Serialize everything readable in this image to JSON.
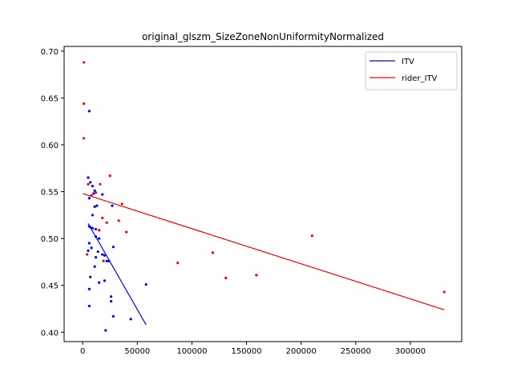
{
  "chart_data": {
    "type": "scatter",
    "title": "original_glszm_SizeZoneNonUniformityNormalized",
    "xlabel": "",
    "ylabel": "",
    "xlim": [
      -17000,
      347000
    ],
    "ylim": [
      0.39,
      0.705
    ],
    "x_ticks": [
      0,
      50000,
      100000,
      150000,
      200000,
      250000,
      300000
    ],
    "x_tick_labels": [
      "0",
      "50000",
      "100000",
      "150000",
      "200000",
      "250000",
      "300000"
    ],
    "y_ticks": [
      0.4,
      0.45,
      0.5,
      0.55,
      0.6,
      0.65,
      0.7
    ],
    "y_tick_labels": [
      "0.40",
      "0.45",
      "0.50",
      "0.55",
      "0.60",
      "0.65",
      "0.70"
    ],
    "grid": false,
    "legend_position": "top-right",
    "series": [
      {
        "name": "ITV",
        "color": "#0000ff",
        "points": [
          [
            6000,
            0.636
          ],
          [
            5000,
            0.565
          ],
          [
            7000,
            0.56
          ],
          [
            9000,
            0.556
          ],
          [
            11000,
            0.551
          ],
          [
            10000,
            0.548
          ],
          [
            18000,
            0.547
          ],
          [
            6000,
            0.543
          ],
          [
            13000,
            0.535
          ],
          [
            11000,
            0.534
          ],
          [
            27000,
            0.535
          ],
          [
            9000,
            0.525
          ],
          [
            6000,
            0.513
          ],
          [
            7000,
            0.512
          ],
          [
            9000,
            0.511
          ],
          [
            12000,
            0.51
          ],
          [
            12000,
            0.502
          ],
          [
            15000,
            0.5
          ],
          [
            6000,
            0.495
          ],
          [
            8000,
            0.49
          ],
          [
            28000,
            0.491
          ],
          [
            5000,
            0.487
          ],
          [
            14000,
            0.486
          ],
          [
            18000,
            0.483
          ],
          [
            20000,
            0.482
          ],
          [
            12000,
            0.48
          ],
          [
            22000,
            0.476
          ],
          [
            24000,
            0.476
          ],
          [
            11000,
            0.47
          ],
          [
            7000,
            0.459
          ],
          [
            20000,
            0.455
          ],
          [
            15000,
            0.453
          ],
          [
            58000,
            0.451
          ],
          [
            6000,
            0.446
          ],
          [
            26000,
            0.438
          ],
          [
            26000,
            0.433
          ],
          [
            6000,
            0.428
          ],
          [
            28000,
            0.417
          ],
          [
            44000,
            0.414
          ],
          [
            21000,
            0.402
          ]
        ],
        "fit_line": [
          [
            5000,
            0.516
          ],
          [
            58000,
            0.408
          ]
        ]
      },
      {
        "name": "rider_ITV",
        "color": "#ff0000",
        "points": [
          [
            1000,
            0.688
          ],
          [
            1000,
            0.644
          ],
          [
            1000,
            0.607
          ],
          [
            25000,
            0.567
          ],
          [
            5000,
            0.558
          ],
          [
            16000,
            0.558
          ],
          [
            12000,
            0.549
          ],
          [
            8000,
            0.546
          ],
          [
            36000,
            0.537
          ],
          [
            18000,
            0.522
          ],
          [
            33000,
            0.519
          ],
          [
            22000,
            0.517
          ],
          [
            15000,
            0.509
          ],
          [
            40000,
            0.507
          ],
          [
            210000,
            0.503
          ],
          [
            4000,
            0.483
          ],
          [
            119000,
            0.485
          ],
          [
            19000,
            0.476
          ],
          [
            87000,
            0.474
          ],
          [
            159000,
            0.461
          ],
          [
            131000,
            0.458
          ],
          [
            331000,
            0.443
          ]
        ],
        "fit_line": [
          [
            0,
            0.548
          ],
          [
            331000,
            0.424
          ]
        ]
      }
    ]
  }
}
